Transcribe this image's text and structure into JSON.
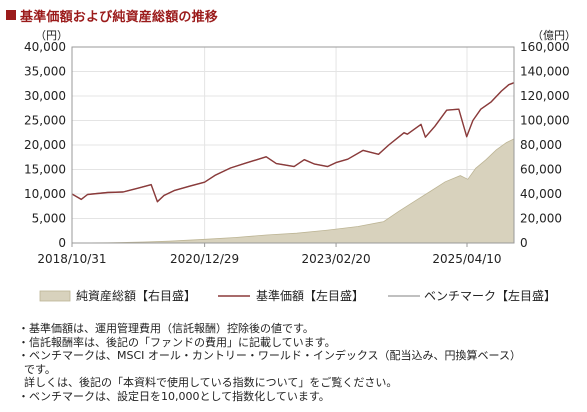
{
  "title": "基準価額および純資産総額の推移",
  "colors": {
    "title": "#9b1b1b",
    "nav_line": "#8b3a3a",
    "benchmark_line": "#9a9a9a",
    "assets_fill": "#d8d2bd",
    "assets_stroke": "#bdb595",
    "frame": "#999999"
  },
  "chart_data": {
    "type": "line",
    "y_left_unit": "（円）",
    "y_right_unit": "（億円）",
    "y_left_range": [
      0,
      40000
    ],
    "y_right_range": [
      0,
      160000
    ],
    "y_left_ticks": [
      "0",
      "5,000",
      "10,000",
      "15,000",
      "20,000",
      "25,000",
      "30,000",
      "35,000",
      "40,000"
    ],
    "y_right_ticks": [
      "0",
      "20,000",
      "40,000",
      "60,000",
      "80,000",
      "100,000",
      "120,000",
      "140,000",
      "160,000"
    ],
    "x_range": [
      "2018-10-31",
      "2026-01-15"
    ],
    "x_ticks": [
      {
        "date": "2018-10-31",
        "label": "2018/10/31"
      },
      {
        "date": "2020-12-29",
        "label": "2020/12/29"
      },
      {
        "date": "2023-02-20",
        "label": "2023/02/20"
      },
      {
        "date": "2025-04-10",
        "label": "2025/04/10"
      }
    ],
    "grid": true,
    "legend_position": "bottom",
    "series": [
      {
        "name": "純資産総額【右目盛】",
        "type": "area",
        "axis": "right",
        "points": [
          [
            "2018-10-31",
            0
          ],
          [
            "2019-06-01",
            200
          ],
          [
            "2020-01-01",
            800
          ],
          [
            "2020-06-01",
            1500
          ],
          [
            "2021-01-01",
            3000
          ],
          [
            "2021-07-01",
            4500
          ],
          [
            "2022-01-01",
            6500
          ],
          [
            "2022-07-01",
            8000
          ],
          [
            "2023-01-01",
            10500
          ],
          [
            "2023-07-01",
            13500
          ],
          [
            "2023-12-01",
            17500
          ],
          [
            "2024-03-01",
            26000
          ],
          [
            "2024-06-01",
            34000
          ],
          [
            "2024-09-01",
            42000
          ],
          [
            "2024-12-01",
            50000
          ],
          [
            "2025-03-01",
            55000
          ],
          [
            "2025-04-15",
            52000
          ],
          [
            "2025-06-01",
            61000
          ],
          [
            "2025-08-01",
            68000
          ],
          [
            "2025-10-01",
            76000
          ],
          [
            "2025-12-01",
            82000
          ],
          [
            "2026-01-15",
            85000
          ]
        ]
      },
      {
        "name": "基準価額【左目盛】",
        "type": "line",
        "axis": "left",
        "points": [
          [
            "2018-10-31",
            10000
          ],
          [
            "2018-12-25",
            8900
          ],
          [
            "2019-02-01",
            9900
          ],
          [
            "2019-06-01",
            10300
          ],
          [
            "2019-09-01",
            10400
          ],
          [
            "2019-12-01",
            11200
          ],
          [
            "2020-02-15",
            11900
          ],
          [
            "2020-03-23",
            8400
          ],
          [
            "2020-05-01",
            9700
          ],
          [
            "2020-07-01",
            10700
          ],
          [
            "2020-10-01",
            11600
          ],
          [
            "2020-12-29",
            12400
          ],
          [
            "2021-03-01",
            13800
          ],
          [
            "2021-06-01",
            15300
          ],
          [
            "2021-09-01",
            16300
          ],
          [
            "2021-12-31",
            17600
          ],
          [
            "2022-03-01",
            16200
          ],
          [
            "2022-06-15",
            15600
          ],
          [
            "2022-08-15",
            17000
          ],
          [
            "2022-10-15",
            16100
          ],
          [
            "2022-12-31",
            15600
          ],
          [
            "2023-02-20",
            16400
          ],
          [
            "2023-05-01",
            17100
          ],
          [
            "2023-07-31",
            18900
          ],
          [
            "2023-10-31",
            18100
          ],
          [
            "2023-12-31",
            20000
          ],
          [
            "2024-03-31",
            22500
          ],
          [
            "2024-04-20",
            22200
          ],
          [
            "2024-07-10",
            24200
          ],
          [
            "2024-08-05",
            21600
          ],
          [
            "2024-09-30",
            23800
          ],
          [
            "2024-12-10",
            27100
          ],
          [
            "2025-02-20",
            27300
          ],
          [
            "2025-04-08",
            21700
          ],
          [
            "2025-05-15",
            25000
          ],
          [
            "2025-07-01",
            27300
          ],
          [
            "2025-09-01",
            28800
          ],
          [
            "2025-11-01",
            31000
          ],
          [
            "2025-12-15",
            32300
          ],
          [
            "2026-01-15",
            32700
          ]
        ]
      },
      {
        "name": "ベンチマーク【左目盛】",
        "type": "line",
        "axis": "left",
        "points": [
          [
            "2018-10-31",
            10000
          ],
          [
            "2018-12-25",
            8950
          ],
          [
            "2019-02-01",
            9950
          ],
          [
            "2019-06-01",
            10350
          ],
          [
            "2019-09-01",
            10450
          ],
          [
            "2019-12-01",
            11250
          ],
          [
            "2020-02-15",
            11950
          ],
          [
            "2020-03-23",
            8500
          ],
          [
            "2020-05-01",
            9750
          ],
          [
            "2020-07-01",
            10750
          ],
          [
            "2020-10-01",
            11650
          ],
          [
            "2020-12-29",
            12450
          ],
          [
            "2021-03-01",
            13850
          ],
          [
            "2021-06-01",
            15350
          ],
          [
            "2021-09-01",
            16350
          ],
          [
            "2021-12-31",
            17650
          ],
          [
            "2022-03-01",
            16250
          ],
          [
            "2022-06-15",
            15650
          ],
          [
            "2022-08-15",
            17050
          ],
          [
            "2022-10-15",
            16150
          ],
          [
            "2022-12-31",
            15650
          ],
          [
            "2023-02-20",
            16450
          ],
          [
            "2023-05-01",
            17150
          ],
          [
            "2023-07-31",
            18950
          ],
          [
            "2023-10-31",
            18150
          ],
          [
            "2023-12-31",
            20050
          ],
          [
            "2024-03-31",
            22550
          ],
          [
            "2024-04-20",
            22250
          ],
          [
            "2024-07-10",
            24250
          ],
          [
            "2024-08-05",
            21650
          ],
          [
            "2024-09-30",
            23850
          ],
          [
            "2024-12-10",
            27150
          ],
          [
            "2025-02-20",
            27350
          ],
          [
            "2025-04-08",
            21750
          ],
          [
            "2025-05-15",
            25050
          ],
          [
            "2025-07-01",
            27350
          ],
          [
            "2025-09-01",
            28850
          ],
          [
            "2025-11-01",
            31050
          ],
          [
            "2025-12-15",
            32350
          ],
          [
            "2026-01-15",
            32800
          ]
        ]
      }
    ]
  },
  "notes": [
    "・基準価額は、運用管理費用（信託報酬）控除後の値です。",
    "・信託報酬率は、後記の「ファンドの費用」に記載しています。",
    "・ベンチマークは、MSCI オール・カントリー・ワールド・インデックス（配当込み、円換算ベース）",
    "です。",
    "詳しくは、後記の「本資料で使用している指数について」をご覧ください。",
    "・ベンチマークは、設定日を10,000として指数化しています。"
  ]
}
